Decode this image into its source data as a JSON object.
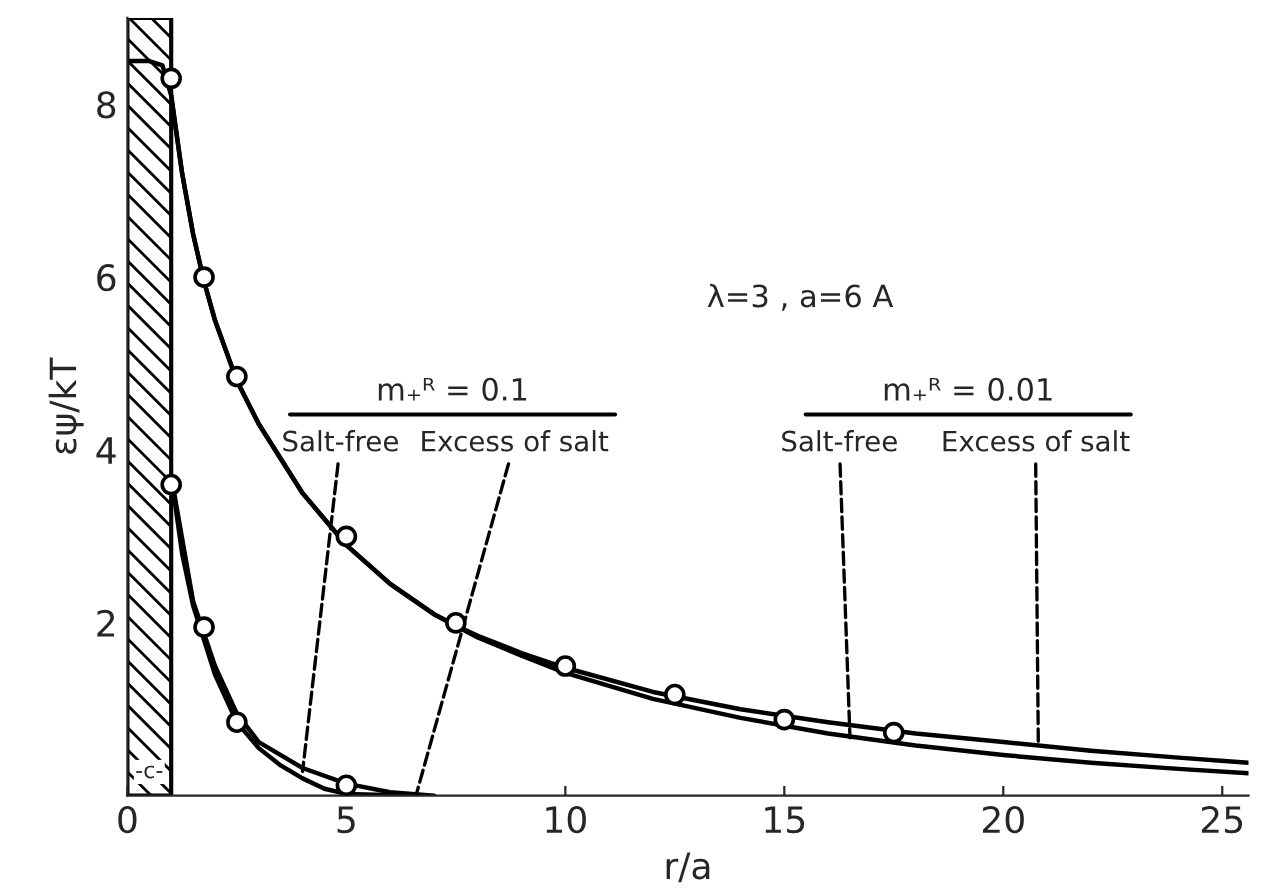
{
  "chart_data": {
    "type": "line",
    "xlabel": "r/a",
    "ylabel": "εψ/kT",
    "xlim": [
      0,
      25.6
    ],
    "ylim": [
      0,
      9
    ],
    "xticks": [
      0,
      5,
      10,
      15,
      20,
      25
    ],
    "yticks": [
      2,
      4,
      6,
      8
    ],
    "grid": false,
    "legend": false,
    "line_style": "solid",
    "series": [
      {
        "marker": "none",
        "color": "#000000",
        "x": [
          0,
          0.5,
          0.8,
          1.0,
          1.25,
          1.5,
          1.75,
          2,
          2.5,
          3,
          4,
          5,
          6,
          7,
          7.5,
          8,
          9,
          10,
          12,
          14,
          16,
          18,
          20,
          22,
          24,
          25.6
        ],
        "values": [
          8.5,
          8.5,
          8.45,
          8.1,
          7.2,
          6.5,
          5.95,
          5.5,
          4.8,
          4.3,
          3.5,
          2.9,
          2.45,
          2.1,
          1.97,
          1.85,
          1.65,
          1.48,
          1.2,
          1.0,
          0.85,
          0.72,
          0.62,
          0.52,
          0.44,
          0.38
        ]
      },
      {
        "marker": "none",
        "color": "#000000",
        "x": [
          1.0,
          1.25,
          1.5,
          1.75,
          2,
          2.5,
          3,
          4,
          5,
          6,
          7,
          8,
          9,
          10,
          12,
          14,
          16,
          18,
          20,
          22,
          24,
          25.6
        ],
        "values": [
          8.1,
          7.2,
          6.5,
          5.95,
          5.5,
          4.8,
          4.3,
          3.5,
          2.9,
          2.45,
          2.1,
          1.83,
          1.62,
          1.42,
          1.12,
          0.9,
          0.72,
          0.58,
          0.47,
          0.38,
          0.31,
          0.26
        ]
      },
      {
        "marker": "none",
        "color": "#000000",
        "x": [
          1,
          1.25,
          1.5,
          1.75,
          2,
          2.5,
          3,
          3.5,
          4,
          4.5,
          5,
          6.5
        ],
        "values": [
          3.7,
          2.8,
          2.2,
          1.8,
          1.4,
          0.85,
          0.55,
          0.35,
          0.2,
          0.08,
          0.02,
          0
        ]
      },
      {
        "marker": "none",
        "color": "#000000",
        "x": [
          1,
          1.5,
          2,
          2.5,
          3,
          4,
          5,
          6,
          7
        ],
        "values": [
          3.7,
          2.25,
          1.5,
          0.95,
          0.62,
          0.32,
          0.14,
          0.04,
          0
        ]
      },
      {
        "type": "scatter",
        "marker": "circle",
        "color": "#000000",
        "x": [
          1,
          1.75,
          2.5,
          5,
          7.5,
          10,
          12.5,
          15,
          17.5
        ],
        "values": [
          8.3,
          6.0,
          4.85,
          3.0,
          2.0,
          1.5,
          1.17,
          0.88,
          0.73
        ]
      },
      {
        "type": "scatter",
        "marker": "circle",
        "color": "#000000",
        "x": [
          1,
          1.75,
          2.5,
          5
        ],
        "values": [
          3.6,
          1.95,
          0.85,
          0.12
        ]
      }
    ],
    "bands": [
      {
        "axis": "x",
        "from": 0,
        "to": 1,
        "label": "-c-"
      }
    ],
    "annotations": [
      "λ=3 , a=6 A",
      "m₊ᴿ = 0.1",
      "m₊ᴿ = 0.01",
      {
        "text": "Salt-free",
        "x": 4.0,
        "y": 0.28
      },
      {
        "text": "Excess of salt",
        "x": 6.6,
        "y": 0.02
      },
      {
        "text": "Salt-free",
        "x": 16.5,
        "y": 0.67
      },
      {
        "text": "Excess of salt",
        "x": 20.8,
        "y": 0.6
      }
    ]
  }
}
